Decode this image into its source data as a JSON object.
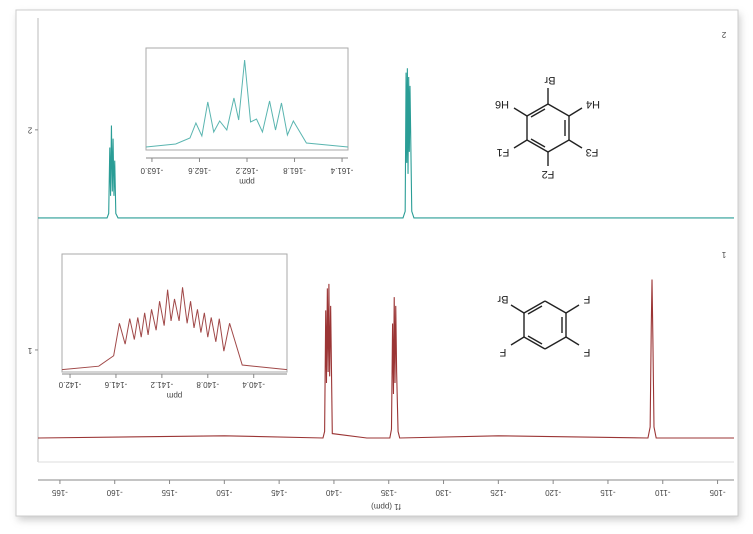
{
  "chart_data": [
    {
      "type": "line",
      "x_label": "f1 (ppm)",
      "xlim": [
        -167,
        -103.5
      ],
      "xticks": [
        -165,
        -160,
        -155,
        -150,
        -145,
        -140,
        -135,
        -130,
        -125,
        -120,
        -115,
        -110,
        -105
      ],
      "ylim": [
        0.5,
        2.49
      ],
      "yticks": [
        1,
        2
      ],
      "series": [
        {
          "name": "2",
          "color": "#2a9d96",
          "x": [
            -167,
            -160.7,
            -160.55,
            -160.45,
            -160.38,
            -160.3,
            -160.22,
            -160.15,
            -160.07,
            -160.0,
            -159.9,
            -159.7,
            -133.7,
            -133.5,
            -133.42,
            -133.36,
            -133.3,
            -133.24,
            -133.18,
            -133.12,
            -133.06,
            -132.9,
            -132.7,
            -103.5
          ],
          "values": [
            1.6,
            1.6,
            1.62,
            1.92,
            1.7,
            2.02,
            1.72,
            1.96,
            1.7,
            1.86,
            1.62,
            1.6,
            1.6,
            1.63,
            2.26,
            1.85,
            2.28,
            1.8,
            2.24,
            1.9,
            2.2,
            1.63,
            1.6,
            1.6
          ]
        },
        {
          "name": "1",
          "color": "#9b3535",
          "x": [
            -167,
            -150,
            -141.0,
            -140.85,
            -140.75,
            -140.68,
            -140.6,
            -140.53,
            -140.46,
            -140.39,
            -140.3,
            -140.15,
            -137,
            -134.9,
            -134.75,
            -134.65,
            -134.57,
            -134.5,
            -134.43,
            -134.36,
            -134.28,
            -134.15,
            -134.0,
            -125,
            -111.35,
            -111.15,
            -111.05,
            -110.98,
            -110.9,
            -110.8,
            -110.6,
            -103.5
          ],
          "values": [
            0.6,
            0.61,
            0.6,
            0.63,
            1.18,
            0.85,
            1.28,
            0.9,
            1.3,
            0.88,
            1.2,
            0.62,
            0.6,
            0.6,
            0.64,
            1.12,
            0.8,
            1.24,
            0.85,
            1.2,
            0.9,
            0.63,
            0.6,
            0.61,
            0.6,
            0.65,
            1.1,
            1.32,
            1.05,
            0.65,
            0.6,
            0.6
          ]
        }
      ]
    },
    {
      "type": "line",
      "x_label": "ppm",
      "xlim": [
        -163.05,
        -161.35
      ],
      "xticks": [
        {
          "value": -163,
          "label": "-163.0"
        },
        -162.6,
        -162.2,
        -161.8,
        -161.4
      ],
      "ylim": [
        0,
        100
      ],
      "series": [
        {
          "color": "#5ab5b0",
          "x": [
            -163.05,
            -162.8,
            -162.68,
            -162.63,
            -162.58,
            -162.53,
            -162.48,
            -162.43,
            -162.37,
            -162.31,
            -162.27,
            -162.22,
            -162.17,
            -162.12,
            -162.07,
            -162.01,
            -161.96,
            -161.91,
            -161.86,
            -161.81,
            -161.7,
            -161.35
          ],
          "values": [
            3,
            6,
            12,
            27,
            14,
            48,
            18,
            29,
            20,
            52,
            30,
            90,
            28,
            31,
            18,
            49,
            20,
            47,
            15,
            29,
            7,
            3
          ]
        }
      ]
    },
    {
      "type": "line",
      "x_label": "ppm",
      "xlim": [
        -142.07,
        -140.11
      ],
      "xticks": [
        {
          "value": -142,
          "label": "-142.0"
        },
        -141.6,
        -141.2,
        -140.8,
        -140.4
      ],
      "ylim": [
        0,
        100
      ],
      "series": [
        {
          "color": "#a04848",
          "x": [
            -142.07,
            -141.75,
            -141.62,
            -141.57,
            -141.52,
            -141.48,
            -141.44,
            -141.41,
            -141.38,
            -141.35,
            -141.32,
            -141.29,
            -141.25,
            -141.22,
            -141.18,
            -141.15,
            -141.12,
            -141.09,
            -141.05,
            -141.02,
            -140.98,
            -140.95,
            -140.92,
            -140.89,
            -140.86,
            -140.83,
            -140.8,
            -140.77,
            -140.73,
            -140.7,
            -140.66,
            -140.61,
            -140.5,
            -140.11
          ],
          "values": [
            2,
            5,
            14,
            42,
            24,
            46,
            28,
            47,
            30,
            51,
            32,
            54,
            36,
            61,
            40,
            71,
            44,
            63,
            44,
            73,
            42,
            61,
            38,
            54,
            34,
            51,
            30,
            47,
            26,
            46,
            18,
            42,
            6,
            2
          ]
        }
      ]
    }
  ],
  "molecules": [
    {
      "labels": [
        "Br",
        "H4",
        "F3",
        "F2",
        "F1",
        "H6"
      ]
    },
    {
      "labels": [
        "Br",
        "F",
        "F",
        "F"
      ]
    }
  ]
}
